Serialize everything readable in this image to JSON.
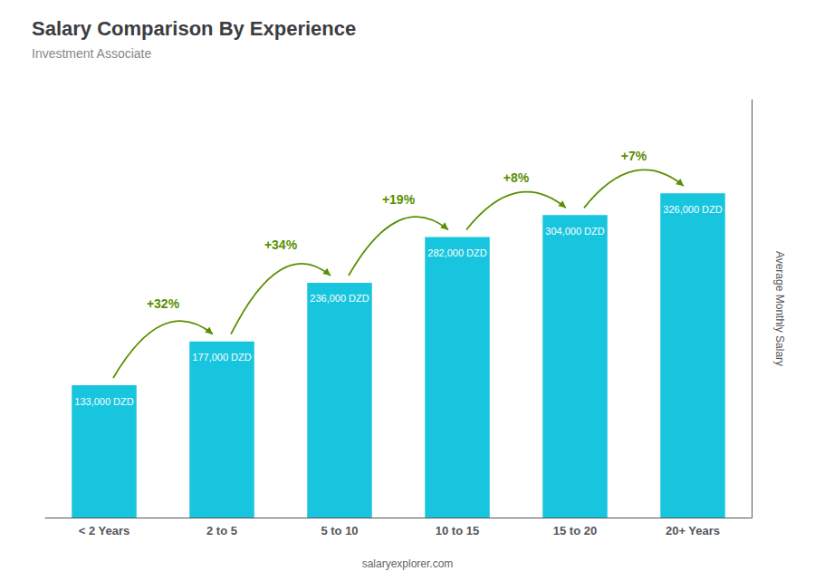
{
  "chart_data": {
    "type": "bar",
    "title": "Salary Comparison By Experience",
    "subtitle": "Investment Associate",
    "categories": [
      "< 2 Years",
      "2 to 5",
      "5 to 10",
      "10 to 15",
      "15 to 20",
      "20+ Years"
    ],
    "values": [
      133000,
      177000,
      236000,
      282000,
      304000,
      326000
    ],
    "value_labels": [
      "133,000 DZD",
      "177,000 DZD",
      "236,000 DZD",
      "282,000 DZD",
      "304,000 DZD",
      "326,000 DZD"
    ],
    "annotations": [
      null,
      "+32%",
      "+34%",
      "+19%",
      "+8%",
      "+7%"
    ],
    "color": "#18c5de",
    "ylabel": "Average Monthly Salary",
    "footer": "salaryexplorer.com",
    "ylim": [
      0,
      420000
    ],
    "yticks": [],
    "grid": false,
    "tick_labels": "x"
  }
}
